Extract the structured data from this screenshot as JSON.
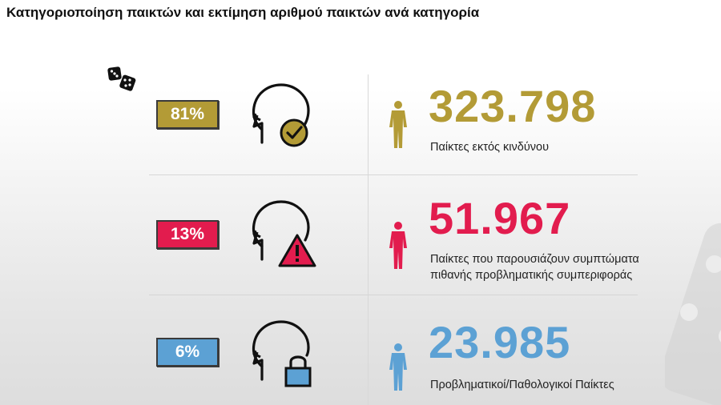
{
  "title": "Κατηγοριοποίηση παικτών και εκτίμηση αριθμού παικτών ανά κατηγορία",
  "rows": [
    {
      "percent": "81%",
      "count": "323.798",
      "desc_line1": "Παίκτες εκτός κινδύνου",
      "desc_line2": "",
      "color": "#b39b36",
      "icon": "head-checkmark-icon"
    },
    {
      "percent": "13%",
      "count": "51.967",
      "desc_line1": "Παίκτες που παρουσιάζουν συμπτώματα",
      "desc_line2": "πιθανής προβληματικής συμπεριφοράς",
      "color": "#e21c4e",
      "icon": "head-warning-icon"
    },
    {
      "percent": "6%",
      "count": "23.985",
      "desc_line1": "Προβληματικοί/Παθολογικοί Παίκτες",
      "desc_line2": "",
      "color": "#5ca1d4",
      "icon": "head-lock-icon"
    }
  ]
}
